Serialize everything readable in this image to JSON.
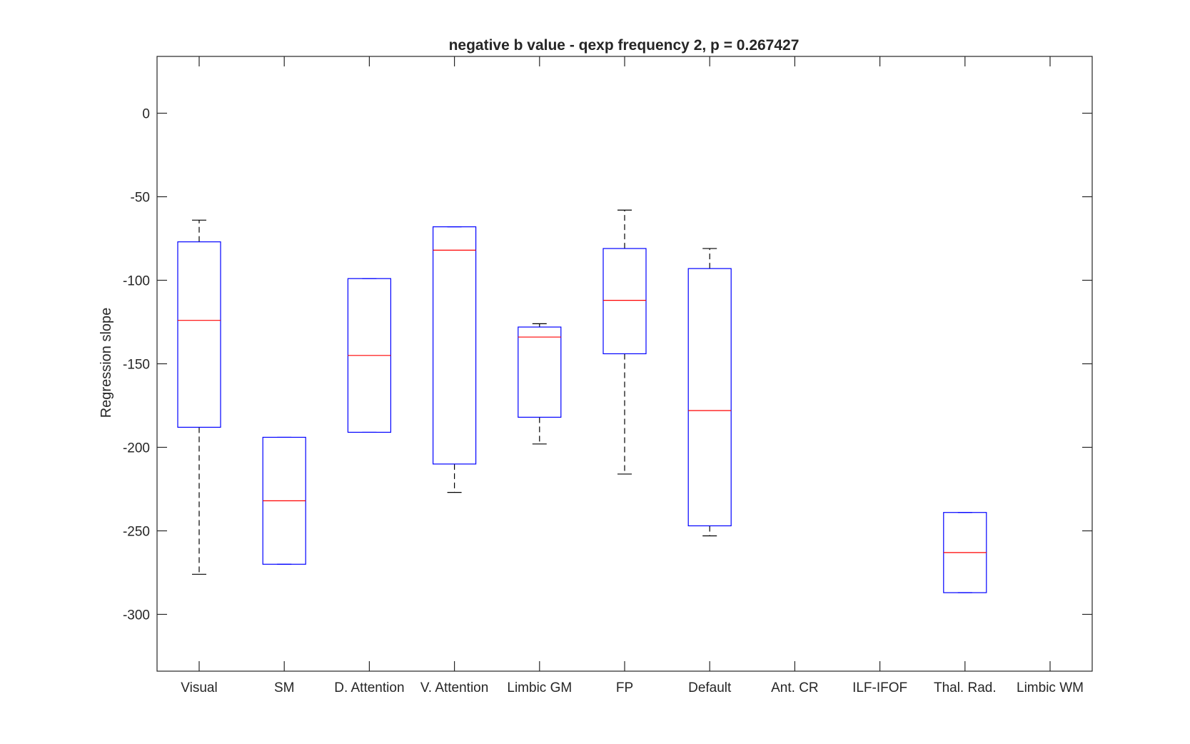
{
  "chart_data": {
    "type": "box",
    "title": "negative b value - qexp frequency 2, p = 0.267427",
    "xlabel": "",
    "ylabel": "Regression slope",
    "ylim": [
      -334,
      34
    ],
    "yticks": [
      0,
      -50,
      -100,
      -150,
      -200,
      -250,
      -300
    ],
    "ytick_labels": [
      "0",
      "-50",
      "-100",
      "-150",
      "-200",
      "-250",
      "-300"
    ],
    "categories": [
      "Visual",
      "SM",
      "D. Attention",
      "V. Attention",
      "Limbic GM",
      "FP",
      "Default",
      "Ant. CR",
      "ILF-IFOF",
      "Thal. Rad.",
      "Limbic WM"
    ],
    "boxes": [
      {
        "category": "Visual",
        "whisker_low": -276,
        "q1": -188,
        "median": -124,
        "q3": -77,
        "whisker_high": -64
      },
      {
        "category": "SM",
        "whisker_low": -270,
        "q1": -270,
        "median": -232,
        "q3": -194,
        "whisker_high": -194
      },
      {
        "category": "D. Attention",
        "whisker_low": -191,
        "q1": -191,
        "median": -145,
        "q3": -99,
        "whisker_high": -99
      },
      {
        "category": "V. Attention",
        "whisker_low": -227,
        "q1": -210,
        "median": -82,
        "q3": -68,
        "whisker_high": -68
      },
      {
        "category": "Limbic GM",
        "whisker_low": -198,
        "q1": -182,
        "median": -134,
        "q3": -128,
        "whisker_high": -126
      },
      {
        "category": "FP",
        "whisker_low": -216,
        "q1": -144,
        "median": -112,
        "q3": -81,
        "whisker_high": -58
      },
      {
        "category": "Default",
        "whisker_low": -253,
        "q1": -247,
        "median": -178,
        "q3": -93,
        "whisker_high": -81
      },
      {
        "category": "Ant. CR"
      },
      {
        "category": "ILF-IFOF"
      },
      {
        "category": "Thal. Rad.",
        "whisker_low": -287,
        "q1": -287,
        "median": -263,
        "q3": -239,
        "whisker_high": -239
      },
      {
        "category": "Limbic WM"
      }
    ],
    "colors": {
      "box": "#0000ff",
      "median": "#ff0000",
      "whisker": "#000000",
      "axes": "#262626"
    },
    "grid": false,
    "legend": "none"
  }
}
